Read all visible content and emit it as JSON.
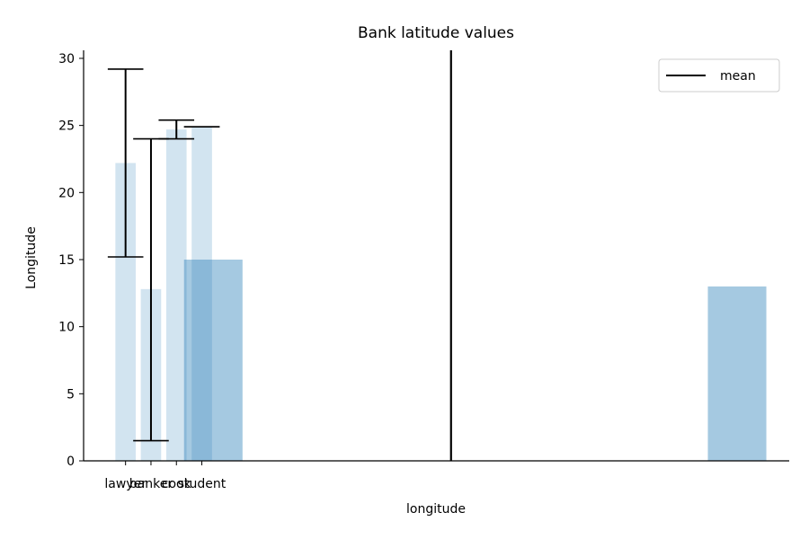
{
  "chart_data": {
    "type": "bar",
    "title": "Bank latitude values",
    "xlabel": "longitude",
    "ylabel": "Longitude",
    "ylim": [
      0,
      30.6
    ],
    "xlim": [
      -1.65,
      26.1
    ],
    "yticks": [
      0,
      5,
      10,
      15,
      20,
      25,
      30
    ],
    "grid": false,
    "categories": [
      {
        "label": "lawyer",
        "x": 0,
        "value": 22.2,
        "err_low": 15.2,
        "err_high": 29.2
      },
      {
        "label": "banker",
        "x": 1,
        "value": 12.8,
        "err_low": 1.5,
        "err_high": 24.0
      },
      {
        "label": "cook",
        "x": 2,
        "value": 24.7,
        "err_low": 24.0,
        "err_high": 25.4
      },
      {
        "label": "student",
        "x": 3,
        "value": 24.9,
        "err_low": 24.9,
        "err_high": 24.9
      }
    ],
    "histogram": {
      "bins": [
        {
          "x0": 2.3,
          "x1": 4.6,
          "count": 15
        },
        {
          "x0": 22.9,
          "x1": 25.2,
          "count": 13
        }
      ]
    },
    "mean_line": {
      "x": 12.8
    },
    "legend": {
      "position": "top-right",
      "entries": [
        {
          "label": "mean"
        }
      ]
    },
    "colors": {
      "bar": "#1f77b4",
      "errorbar": "#000000",
      "mean": "#000000"
    }
  }
}
